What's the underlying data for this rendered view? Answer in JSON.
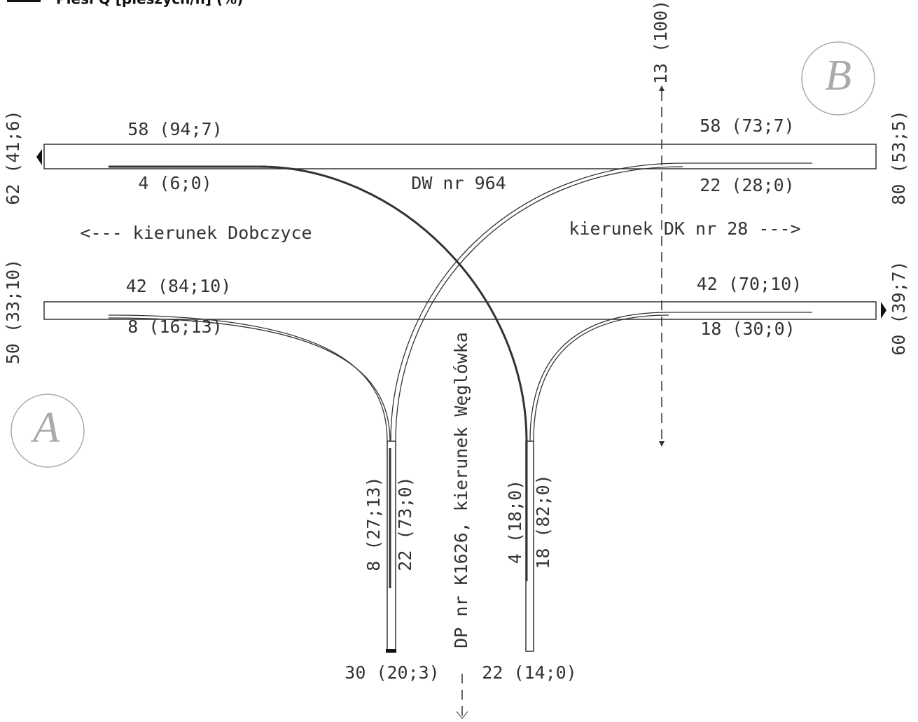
{
  "legend": {
    "title": "Piesi Q [pieszych/h] (%)"
  },
  "nodes": {
    "a": "A",
    "b": "B"
  },
  "roads": {
    "main": "DW nr 964",
    "west": "<--- kierunek Dobczyce",
    "east": "kierunek DK nr 28 --->",
    "south": "DP nr K1626, kierunek Węglówka"
  },
  "flows": {
    "pedestrians_east": "13 (100)",
    "west_upper_total": "62 (41;6)",
    "west_upper_through": "58 (94;7)",
    "west_upper_turn": "4 (6;0)",
    "east_upper_through": "58 (73;7)",
    "east_upper_turn": "22 (28;0)",
    "east_upper_total": "80 (53;5)",
    "west_lower_total": "50 (33;10)",
    "west_lower_through": "42 (84;10)",
    "west_lower_turn": "8 (16;13)",
    "east_lower_through": "42 (70;10)",
    "east_lower_turn": "18 (30;0)",
    "east_lower_total": "60 (39;7)",
    "south_left_a": "8 (27;13)",
    "south_left_b": "22 (73;0)",
    "south_right_a": "4 (18;0)",
    "south_right_b": "18 (82;0)",
    "south_left_total": "30 (20;3)",
    "south_right_total": "22 (14;0)"
  }
}
